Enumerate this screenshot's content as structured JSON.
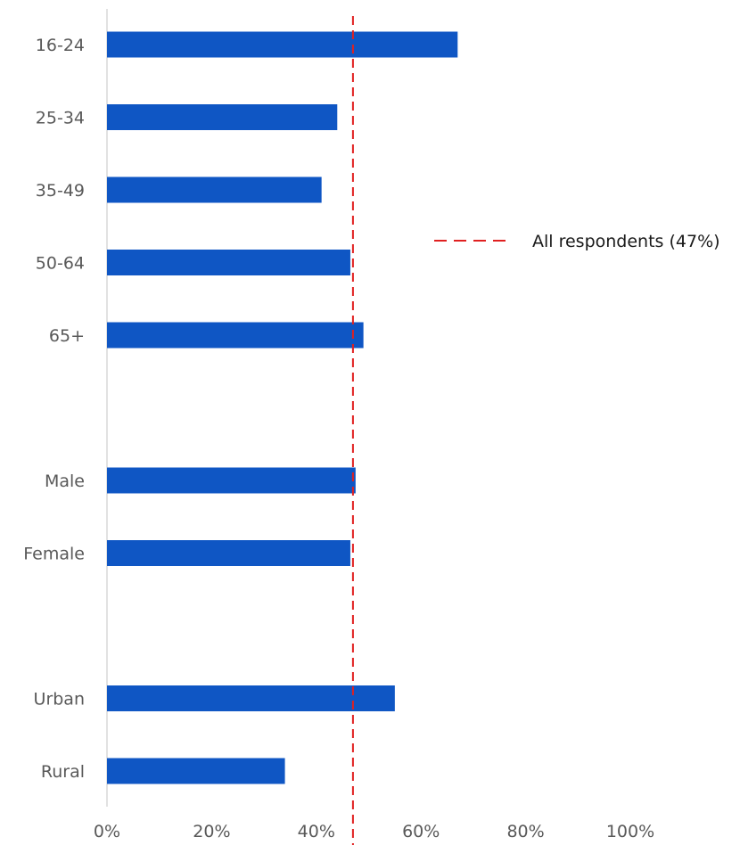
{
  "chart_data": {
    "type": "bar",
    "orientation": "horizontal",
    "categories": [
      "16-24",
      "25-34",
      "35-49",
      "50-64",
      "65+",
      "",
      "Male",
      "Female",
      "",
      "Urban",
      "Rural"
    ],
    "values": [
      67,
      44,
      41,
      46.5,
      49,
      null,
      47.5,
      46.5,
      null,
      55,
      34
    ],
    "xlim": [
      0,
      100
    ],
    "x_ticks": [
      "0%",
      "20%",
      "40%",
      "60%",
      "80%",
      "100%"
    ],
    "reference_line": {
      "value": 47,
      "label": "All respondents (47%)",
      "color": "#e02020",
      "style": "dashed"
    },
    "bar_color": "#0f56c4",
    "legend": "right",
    "grid": false
  }
}
